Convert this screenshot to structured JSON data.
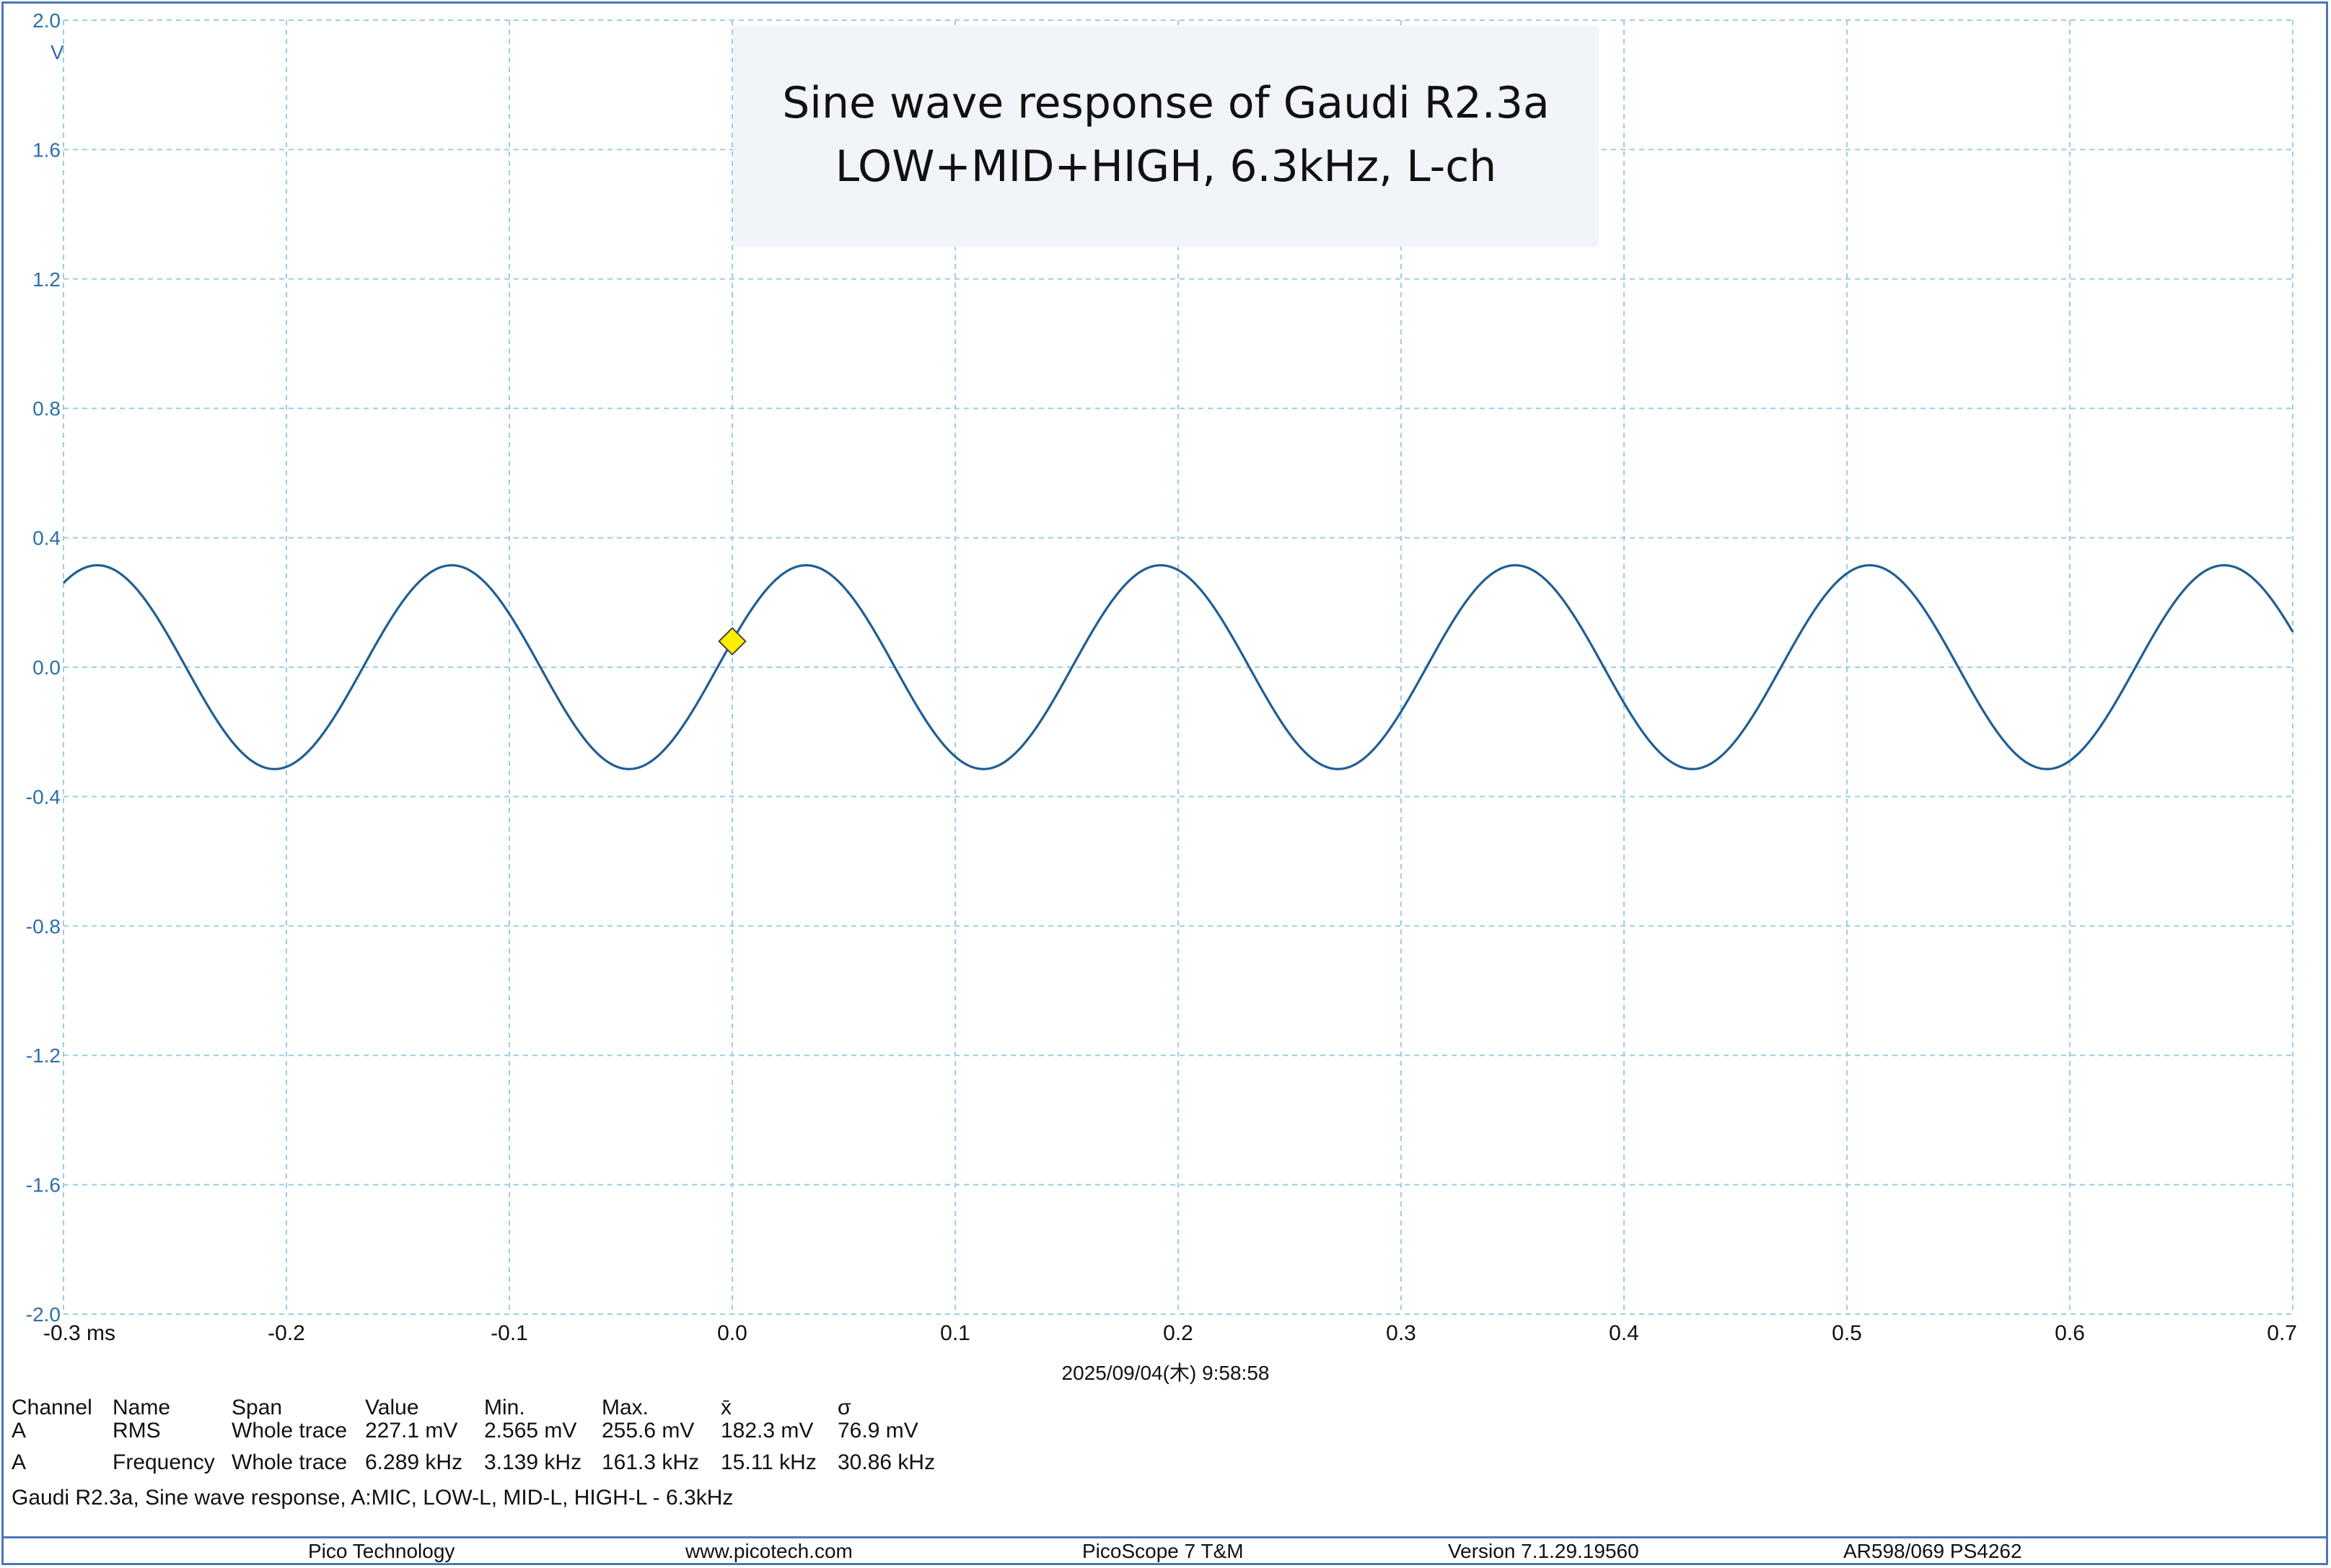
{
  "chart_data": {
    "type": "line",
    "title": "Sine wave response of Gaudi R2.3a",
    "subtitle": "LOW+MID+HIGH, 6.3kHz, L-ch",
    "xlim": [
      -0.3,
      0.7
    ],
    "ylim": [
      -2.0,
      2.0
    ],
    "x_ticks": [
      "-0.3 ms",
      "-0.2",
      "-0.1",
      "0.0",
      "0.1",
      "0.2",
      "0.3",
      "0.4",
      "0.5",
      "0.6",
      "0.7"
    ],
    "y_ticks": [
      "2.0",
      "1.6",
      "1.2",
      "0.8",
      "0.4",
      "0.0",
      "-0.4",
      "-0.8",
      "-1.2",
      "-1.6",
      "-2.0"
    ],
    "y_unit": "V",
    "grid": true,
    "series": [
      {
        "amplitude_v": 0.315,
        "frequency_khz": 6.289,
        "phase_rad": 0.26,
        "color": "#1f5e94"
      }
    ],
    "trigger_marker": {
      "x": 0.0,
      "y": 0.08,
      "color": "#ffee00"
    }
  },
  "timestamp": "2025/09/04(木) 9:58:58",
  "measurements": {
    "headers": [
      "Channel",
      "Name",
      "Span",
      "Value",
      "Min.",
      "Max.",
      "x̄",
      "σ"
    ],
    "rows": [
      [
        "A",
        "RMS",
        "Whole trace",
        "227.1 mV",
        "2.565 mV",
        "255.6 mV",
        "182.3 mV",
        "76.9 mV"
      ],
      [
        "A",
        "Frequency",
        "Whole trace",
        "6.289 kHz",
        "3.139 kHz",
        "161.3 kHz",
        "15.11 kHz",
        "30.86 kHz"
      ]
    ]
  },
  "caption": "Gaudi R2.3a, Sine wave response, A:MIC, LOW-L, MID-L, HIGH-L - 6.3kHz",
  "footer": [
    "Pico Technology",
    "www.picotech.com",
    "PicoScope 7 T&M",
    "Version 7.1.29.19560",
    "AR598/069 PS4262"
  ],
  "colors": {
    "grid": "#9ccde6",
    "axis_text": "#2d6fa8",
    "frame": "#4a78b8"
  }
}
